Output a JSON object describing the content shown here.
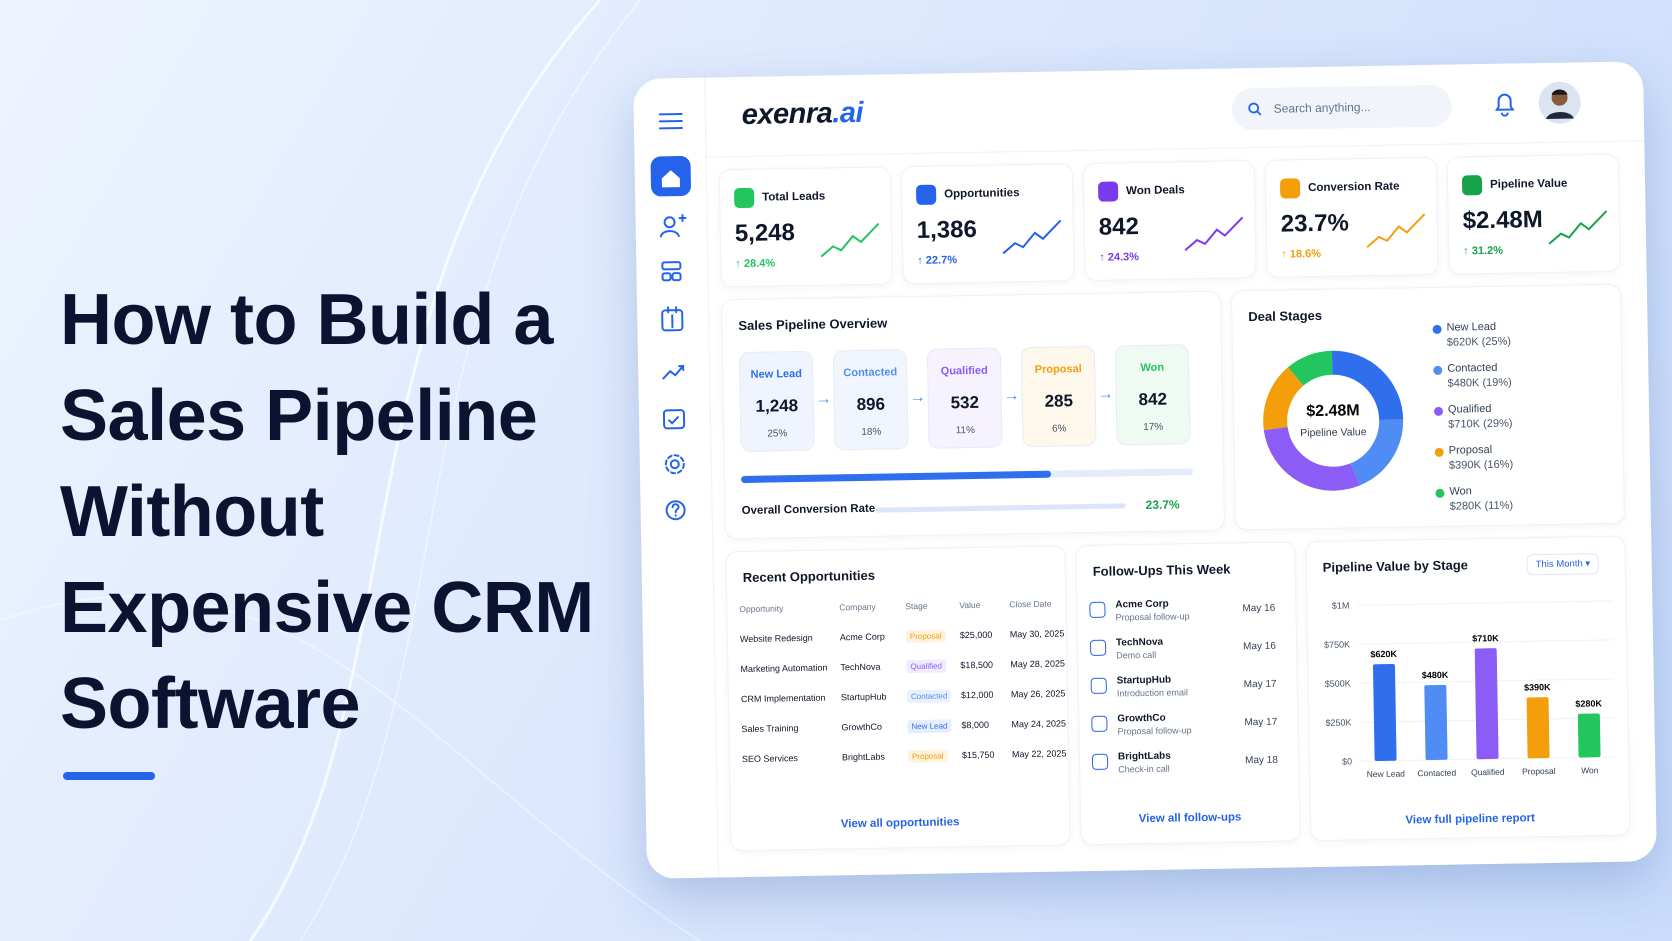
{
  "headline": {
    "title_lines": [
      "How to Build a",
      "Sales Pipeline",
      "Without",
      "Expensive CRM",
      "Software"
    ]
  },
  "dashboard": {
    "brand": {
      "name": "exenra",
      "suffix": ".ai"
    },
    "search_placeholder": "Search anything...",
    "kpis": [
      {
        "label": "Total Leads",
        "value": "5,248",
        "change": "↑ 28.4%",
        "color": "#22c55e"
      },
      {
        "label": "Opportunities",
        "value": "1,386",
        "change": "↑ 22.7%",
        "color": "#2563eb"
      },
      {
        "label": "Won Deals",
        "value": "842",
        "change": "↑ 24.3%",
        "color": "#7c3aed"
      },
      {
        "label": "Conversion Rate",
        "value": "23.7%",
        "change": "↑ 18.6%",
        "color": "#f59e0b"
      },
      {
        "label": "Pipeline Value",
        "value": "$2.48M",
        "change": "↑ 31.2%",
        "color": "#16a34a"
      }
    ],
    "pipeline": {
      "title": "Sales Pipeline Overview",
      "stages": [
        {
          "name": "New Lead",
          "count": "1,248",
          "share": "25%"
        },
        {
          "name": "Contacted",
          "count": "896",
          "share": "18%"
        },
        {
          "name": "Qualified",
          "count": "532",
          "share": "11%"
        },
        {
          "name": "Proposal",
          "count": "285",
          "share": "6%"
        },
        {
          "name": "Won",
          "count": "842",
          "share": "17%"
        }
      ],
      "conversion_label": "Overall Conversion Rate",
      "conversion_value": "23.7%"
    },
    "deal_stages": {
      "title": "Deal Stages",
      "center_value": "$2.48M",
      "center_label": "Pipeline Value",
      "segments": [
        {
          "name": "New Lead",
          "amount": "$620K",
          "share": 25,
          "share_label": "(25%)",
          "color": "#2f6fed"
        },
        {
          "name": "Contacted",
          "amount": "$480K",
          "share": 19,
          "share_label": "(19%)",
          "color": "#4f8cf3"
        },
        {
          "name": "Qualified",
          "amount": "$710K",
          "share": 29,
          "share_label": "(29%)",
          "color": "#8b5cf6"
        },
        {
          "name": "Proposal",
          "amount": "$390K",
          "share": 16,
          "share_label": "(16%)",
          "color": "#f59e0b"
        },
        {
          "name": "Won",
          "amount": "$280K",
          "share": 11,
          "share_label": "(11%)",
          "color": "#22c55e"
        }
      ]
    },
    "recent_opportunities": {
      "title": "Recent Opportunities",
      "columns": [
        "Opportunity",
        "Company",
        "Stage",
        "Value",
        "Close Date"
      ],
      "rows": [
        [
          "Website Redesign",
          "Acme Corp",
          "Proposal",
          "$25,000",
          "May 30, 2025"
        ],
        [
          "Marketing Automation",
          "TechNova",
          "Qualified",
          "$18,500",
          "May 28, 2025"
        ],
        [
          "CRM Implementation",
          "StartupHub",
          "Contacted",
          "$12,000",
          "May 26, 2025"
        ],
        [
          "Sales Training",
          "GrowthCo",
          "New Lead",
          "$8,000",
          "May 24, 2025"
        ],
        [
          "SEO Services",
          "BrightLabs",
          "Proposal",
          "$15,750",
          "May 22, 2025"
        ]
      ],
      "link": "View all opportunities"
    },
    "follow_ups": {
      "title": "Follow-Ups This Week",
      "items": [
        {
          "company": "Acme Corp",
          "task": "Proposal follow-up",
          "date": "May 16"
        },
        {
          "company": "TechNova",
          "task": "Demo call",
          "date": "May 16"
        },
        {
          "company": "StartupHub",
          "task": "Introduction email",
          "date": "May 17"
        },
        {
          "company": "GrowthCo",
          "task": "Proposal follow-up",
          "date": "May 17"
        },
        {
          "company": "BrightLabs",
          "task": "Check-in call",
          "date": "May 18"
        }
      ],
      "link": "View all follow-ups"
    },
    "pipeline_by_stage": {
      "type": "bar",
      "title": "Pipeline Value by Stage",
      "filter": "This Month",
      "categories": [
        "New Lead",
        "Contacted",
        "Qualified",
        "Proposal",
        "Won"
      ],
      "values": [
        620000,
        480000,
        710000,
        390000,
        280000
      ],
      "value_labels": [
        "$620K",
        "$480K",
        "$710K",
        "$390K",
        "$280K"
      ],
      "colors": [
        "#2f6fed",
        "#4f8cf3",
        "#8b5cf6",
        "#f59e0b",
        "#22c55e"
      ],
      "ylim": [
        0,
        1000000
      ],
      "yticks": [
        {
          "value": 0,
          "label": "$0"
        },
        {
          "value": 250000,
          "label": "$250K"
        },
        {
          "value": 500000,
          "label": "$500K"
        },
        {
          "value": 750000,
          "label": "$750K"
        },
        {
          "value": 1000000,
          "label": "$1M"
        }
      ],
      "link": "View full pipeline report"
    }
  }
}
